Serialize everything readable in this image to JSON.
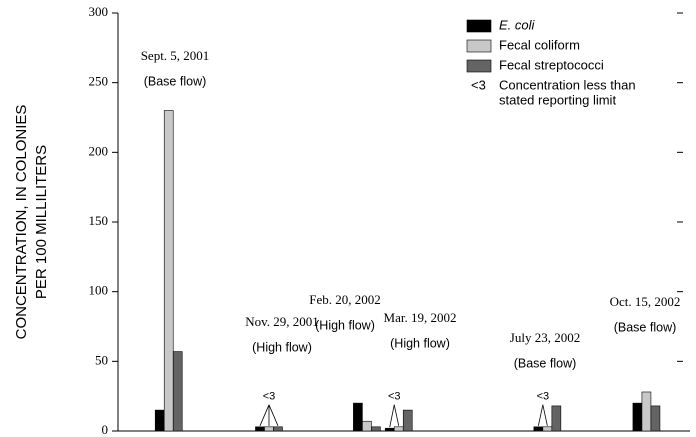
{
  "chart_data": {
    "type": "bar",
    "y_label": [
      "CONCENTRATION, IN COLONIES",
      "PER 100 MILLILITERS"
    ],
    "categories": [
      "Sept. 5, 2001",
      "Nov. 29, 2001",
      "Feb. 20, 2002",
      "Mar. 19, 2002",
      "July 23, 2002",
      "Oct. 15, 2002"
    ],
    "category_notes": [
      "(Base flow)",
      "(High flow)",
      "(High flow)",
      "(High flow)",
      "(Base flow)",
      "(Base flow)"
    ],
    "dates": [
      "2001-09-05",
      "2001-11-29",
      "2002-02-20",
      "2002-03-19",
      "2002-07-23",
      "2002-10-15"
    ],
    "xlim": [
      "2001-07-24",
      "2002-11-15"
    ],
    "series": [
      {
        "name": "E. coli",
        "color": "#000000",
        "values": [
          15,
          3,
          20,
          2,
          3,
          20
        ]
      },
      {
        "name": "Fecal coliform",
        "color": "#c8c8c8",
        "values": [
          230,
          3,
          7,
          3,
          3,
          28
        ]
      },
      {
        "name": "Fecal streptococci",
        "color": "#646464",
        "values": [
          57,
          3,
          3,
          15,
          18,
          18
        ]
      }
    ],
    "annotations": [
      {
        "text": "<3",
        "category": 1,
        "series": [
          0,
          1,
          2
        ]
      },
      {
        "text": "<3",
        "category": 3,
        "series": [
          0,
          1
        ]
      },
      {
        "text": "<3",
        "category": 4,
        "series": [
          0,
          1
        ]
      }
    ],
    "legend_note": {
      "symbol": "<3",
      "text": [
        "Concentration less than",
        "stated reporting limit"
      ]
    },
    "legend": "upper right",
    "ylim": [
      0,
      300
    ],
    "yticks": [
      0,
      50,
      100,
      150,
      200,
      250,
      300
    ]
  }
}
